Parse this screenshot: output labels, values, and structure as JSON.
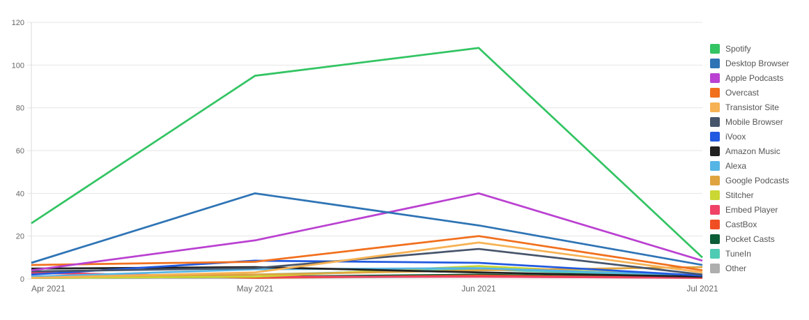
{
  "chart_data": {
    "type": "line",
    "title": "",
    "xlabel": "",
    "ylabel": "",
    "categories": [
      "Apr 2021",
      "May 2021",
      "Jun 2021",
      "Jul 2021"
    ],
    "ylim": [
      0,
      120
    ],
    "yticks": [
      0,
      20,
      40,
      60,
      80,
      100,
      120
    ],
    "grid": "horizontal",
    "legend_position": "right",
    "series": [
      {
        "name": "Spotify",
        "color": "#33c463",
        "values": [
          26,
          95,
          108,
          10
        ]
      },
      {
        "name": "Desktop Browser",
        "color": "#2e74b5",
        "values": [
          7.5,
          40,
          25,
          6.5
        ]
      },
      {
        "name": "Apple Podcasts",
        "color": "#ba41d1",
        "values": [
          4,
          18,
          40,
          8.5
        ]
      },
      {
        "name": "Overcast",
        "color": "#f1701e",
        "values": [
          6.5,
          8,
          20,
          4
        ]
      },
      {
        "name": "Transistor Site",
        "color": "#f6b254",
        "values": [
          0.5,
          3,
          17,
          3
        ]
      },
      {
        "name": "Mobile Browser",
        "color": "#47556b",
        "values": [
          3.5,
          5,
          14,
          2
        ]
      },
      {
        "name": "iVoox",
        "color": "#2159e0",
        "values": [
          2,
          8.5,
          7.5,
          1.5
        ]
      },
      {
        "name": "Amazon Music",
        "color": "#212121",
        "values": [
          4.8,
          5.5,
          3,
          1
        ]
      },
      {
        "name": "Alexa",
        "color": "#56b5e5",
        "values": [
          1,
          4.5,
          5,
          1.5
        ]
      },
      {
        "name": "Google Podcasts",
        "color": "#dfa440",
        "values": [
          1,
          2,
          4,
          5.5
        ]
      },
      {
        "name": "Stitcher",
        "color": "#cbd732",
        "values": [
          0.5,
          1,
          6,
          1
        ]
      },
      {
        "name": "Embed Player",
        "color": "#ef4265",
        "values": [
          2.8,
          1,
          1,
          0.5
        ]
      },
      {
        "name": "CastBox",
        "color": "#f04f24",
        "values": [
          3,
          0.5,
          1.5,
          0.5
        ]
      },
      {
        "name": "Pocket Casts",
        "color": "#0b5d37",
        "values": [
          0.5,
          1,
          2,
          0.5
        ]
      },
      {
        "name": "TuneIn",
        "color": "#4ecbb3",
        "values": [
          1,
          2,
          4.5,
          1
        ]
      },
      {
        "name": "Other",
        "color": "#aeaeae",
        "values": [
          0.5,
          0.5,
          1,
          0.5
        ]
      }
    ]
  },
  "style": {
    "grid_color": "#e6e6e6",
    "axis_color": "#d9d9d9",
    "tick_label_color": "#666666",
    "legend_label_color": "#555555",
    "background": "#ffffff"
  }
}
